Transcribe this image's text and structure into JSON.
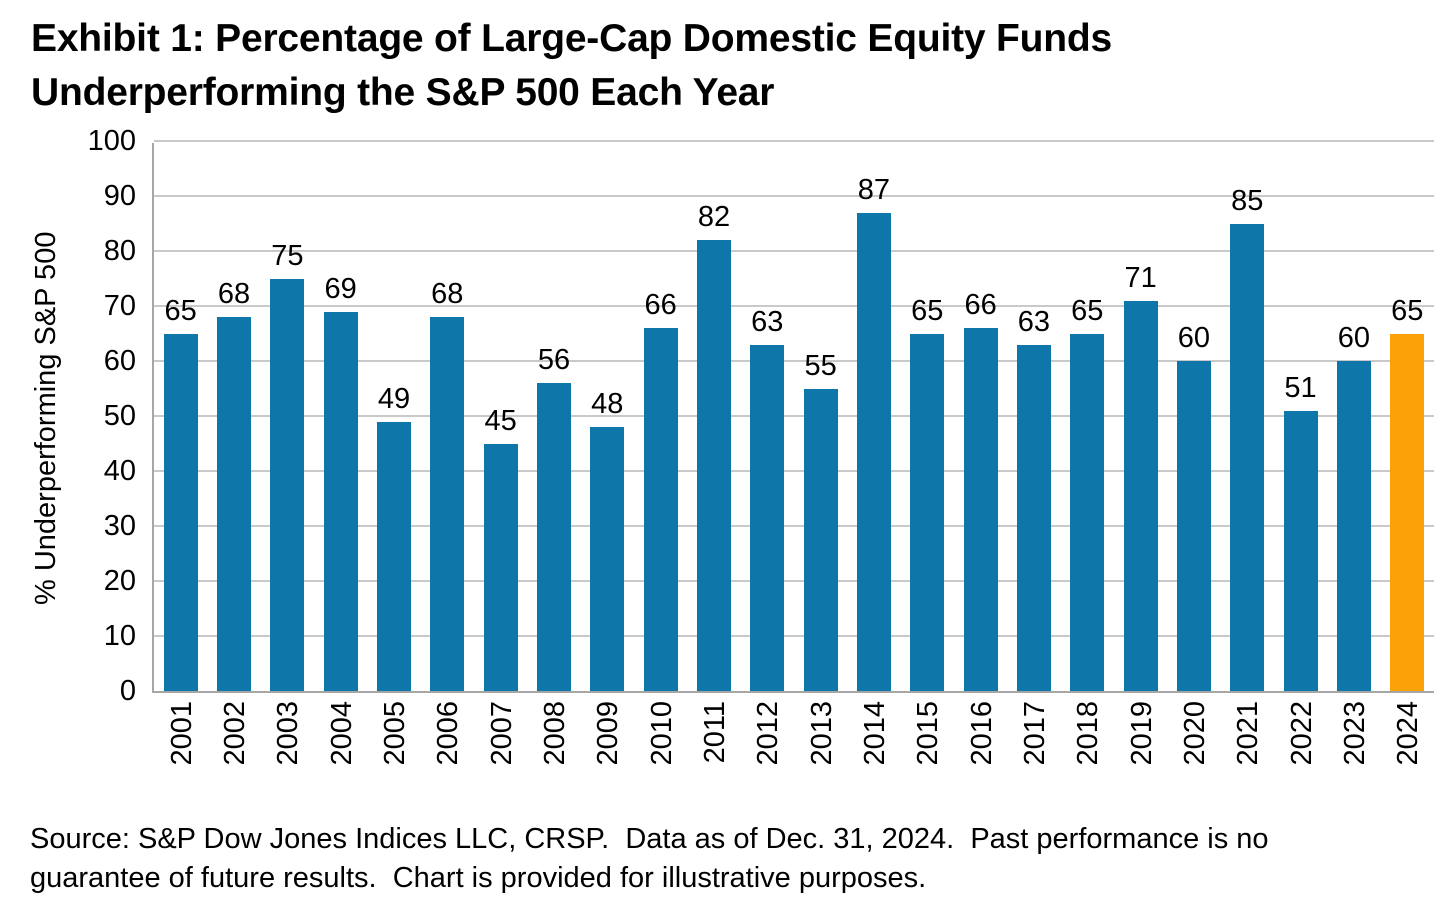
{
  "title": {
    "line1": "Exhibit 1: Percentage of Large-Cap Domestic Equity Funds",
    "line2": "Underperforming the S&P 500 Each Year"
  },
  "chart_data": {
    "type": "bar",
    "title": "Exhibit 1: Percentage of Large-Cap Domestic Equity Funds Underperforming the S&P 500 Each Year",
    "categories": [
      "2001",
      "2002",
      "2003",
      "2004",
      "2005",
      "2006",
      "2007",
      "2008",
      "2009",
      "2010",
      "2011",
      "2012",
      "2013",
      "2014",
      "2015",
      "2016",
      "2017",
      "2018",
      "2019",
      "2020",
      "2021",
      "2022",
      "2023",
      "2024"
    ],
    "values": [
      65,
      68,
      75,
      69,
      49,
      68,
      45,
      56,
      48,
      66,
      82,
      63,
      55,
      87,
      65,
      66,
      63,
      65,
      71,
      60,
      85,
      51,
      60,
      65
    ],
    "xlabel": "",
    "ylabel": "% Underperforming S&P 500",
    "ylim": [
      0,
      100
    ],
    "yticks": [
      0,
      10,
      20,
      30,
      40,
      50,
      60,
      70,
      80,
      90,
      100
    ],
    "grid": true,
    "data_labels": true,
    "legend": "none",
    "highlight_category": "2024",
    "colors": {
      "bar_default": "#0E76A8",
      "bar_highlight": "#FCA108",
      "gridline": "#C9C9C9",
      "axis": "#A6A6A6",
      "text": "#000000"
    }
  },
  "source": {
    "line1": "Source: S&P Dow Jones Indices LLC, CRSP.  Data as of Dec. 31, 2024.  Past performance is no",
    "line2": "guarantee of future results.  Chart is provided for illustrative purposes."
  }
}
